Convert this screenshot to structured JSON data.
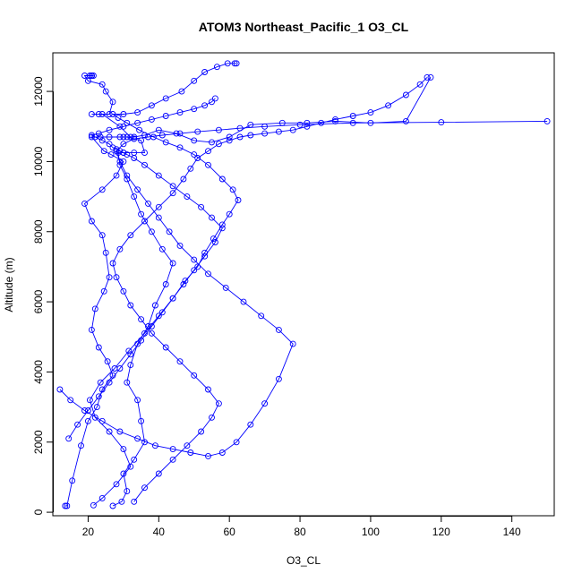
{
  "chart_data": {
    "type": "line",
    "title": "ATOM3 Northeast_Pacific_1 O3_CL",
    "xlabel": "O3_CL",
    "ylabel": "Altitude (m)",
    "xlim": [
      10,
      152
    ],
    "ylim": [
      -100,
      13100
    ],
    "xticks": [
      20,
      40,
      60,
      80,
      100,
      120,
      140
    ],
    "yticks": [
      0,
      2000,
      4000,
      6000,
      8000,
      10000,
      12000
    ],
    "grid": false,
    "legend": "none",
    "series_color": "#0000ff",
    "series": [
      {
        "x": [
          13.5,
          14.0,
          15.5,
          18.0,
          20.0,
          22.5,
          24.0,
          27.0,
          25.5,
          23.0,
          21.0,
          22.0,
          24.5,
          26.0,
          25.0,
          24.0,
          21.0,
          19.0,
          24.0,
          28.0,
          30.0,
          26.5,
          24.5,
          21.0,
          23.5,
          26.0,
          32.0,
          29.0,
          24.0,
          21.0,
          23.0,
          26.0,
          27.0,
          25.0,
          24.0,
          20.0,
          19.0,
          20.5,
          21.5,
          21.0,
          21.0,
          21.0,
          21.0
        ],
        "y": [
          180,
          180,
          900,
          1900,
          2600,
          3000,
          3500,
          3900,
          4300,
          4700,
          5200,
          5800,
          6300,
          6700,
          7400,
          7900,
          8300,
          8800,
          9200,
          9600,
          10000,
          10200,
          10300,
          10700,
          10700,
          10700,
          10700,
          11000,
          11350,
          11350,
          11350,
          11350,
          11700,
          12000,
          12200,
          12300,
          12450,
          12450,
          12450,
          12450,
          12450,
          12450,
          12450
        ]
      },
      {
        "x": [
          27.0,
          29.5,
          31.0,
          30.0,
          33.0,
          36.0,
          35.0,
          34.0,
          31.0,
          32.0,
          34.0,
          37.0,
          39.0,
          42.0,
          44.0,
          41.0,
          38.0,
          35.0,
          33.0,
          31.0,
          29.0,
          28.5,
          30.0,
          33.0,
          36.0,
          35.0,
          31.0,
          29.0,
          30.0,
          33.0,
          36.0,
          40.0,
          45.0,
          50.0,
          55.0,
          60.0,
          66.0,
          75.0,
          82.0,
          90.0,
          100.0,
          110.0,
          117.0
        ],
        "y": [
          180,
          300,
          600,
          1100,
          1500,
          2000,
          2600,
          3200,
          3700,
          4200,
          4800,
          5300,
          5900,
          6500,
          7100,
          7500,
          8000,
          8500,
          9000,
          9500,
          9900,
          10250,
          10250,
          10250,
          10250,
          10600,
          10700,
          10700,
          10700,
          10700,
          10750,
          10900,
          10800,
          10600,
          10550,
          10700,
          11050,
          11100,
          11100,
          11150,
          11100,
          11150,
          12400
        ]
      },
      {
        "x": [
          21.5,
          24.0,
          28.0,
          32.0,
          30.0,
          26.0,
          22.0,
          20.5,
          23.5,
          27.5,
          31.5,
          36.0,
          40.0,
          44.0,
          47.5,
          51.0,
          53.0,
          55.5,
          58.0,
          60.0,
          62.5,
          61.0,
          58.0,
          54.0,
          50.0,
          46.0,
          42.0,
          38.5,
          34.5,
          31.0,
          28.5,
          27.0,
          30.0,
          34.0,
          38.0,
          42.0,
          46.5,
          50.0,
          53.0,
          56.5,
          59.5,
          62.0,
          61.5
        ],
        "y": [
          200,
          400,
          800,
          1300,
          1800,
          2300,
          2700,
          3200,
          3700,
          4100,
          4600,
          5100,
          5600,
          6100,
          6600,
          7000,
          7400,
          7800,
          8200,
          8500,
          8900,
          9200,
          9500,
          9900,
          10200,
          10400,
          10550,
          10700,
          10900,
          11100,
          11250,
          11350,
          11350,
          11400,
          11600,
          11800,
          12000,
          12300,
          12550,
          12700,
          12800,
          12800,
          12800
        ]
      },
      {
        "x": [
          33.0,
          36.0,
          40.0,
          44.0,
          48.0,
          52.0,
          55.0,
          57.0,
          54.0,
          50.0,
          46.0,
          42.0,
          38.0,
          35.0,
          32.0,
          30.0,
          28.0,
          27.0,
          29.0,
          32.0,
          36.0,
          40.0,
          44.0,
          47.0,
          49.0,
          51.0,
          54.0,
          57.0,
          60.0,
          63.0,
          66.0,
          70.0,
          74.0,
          78.0,
          82.0,
          86.0,
          90.0,
          95.0,
          100.0,
          105.0,
          110.0,
          114.0,
          116.0
        ],
        "y": [
          300,
          700,
          1100,
          1500,
          1900,
          2300,
          2700,
          3100,
          3500,
          3900,
          4300,
          4700,
          5100,
          5500,
          5900,
          6300,
          6700,
          7100,
          7500,
          7900,
          8300,
          8700,
          9100,
          9500,
          9800,
          10100,
          10300,
          10500,
          10600,
          10700,
          10750,
          10800,
          10850,
          10900,
          11000,
          11100,
          11200,
          11300,
          11400,
          11600,
          11900,
          12200,
          12400
        ]
      },
      {
        "x": [
          12.0,
          15.0,
          19.0,
          24.0,
          29.0,
          34.0,
          39.0,
          44.0,
          49.0,
          54.0,
          58.0,
          62.0,
          66.0,
          70.0,
          74.0,
          78.0,
          74.0,
          69.0,
          64.0,
          59.0,
          54.0,
          50.0,
          46.0,
          43.0,
          40.0,
          37.0,
          34.0,
          31.0,
          29.0,
          28.0,
          30.0,
          33.0,
          37.0,
          41.0,
          46.0,
          51.0,
          57.0,
          63.0,
          70.0,
          80.0,
          95.0,
          120.0,
          150.0
        ],
        "y": [
          3500,
          3200,
          2900,
          2600,
          2300,
          2100,
          1900,
          1800,
          1700,
          1600,
          1700,
          2000,
          2500,
          3100,
          3800,
          4800,
          5200,
          5600,
          6000,
          6400,
          6800,
          7200,
          7600,
          8000,
          8400,
          8800,
          9200,
          9600,
          10000,
          10300,
          10500,
          10650,
          10700,
          10750,
          10800,
          10850,
          10900,
          10950,
          11000,
          11050,
          11100,
          11120,
          11150
        ]
      },
      {
        "x": [
          14.5,
          17.0,
          20.0,
          23.0,
          26.0,
          29.0,
          32.0,
          35.0,
          38.0,
          41.0,
          44.0,
          47.0,
          50.0,
          53.0,
          56.0,
          58.0,
          55.0,
          52.0,
          48.0,
          44.0,
          40.0,
          36.0,
          33.0,
          31.0,
          30.0,
          29.0,
          28.0,
          27.0,
          26.0,
          24.0,
          22.0,
          21.0,
          23.0,
          26.0,
          30.0,
          34.0,
          38.0,
          42.0,
          46.0,
          50.0,
          53.0,
          55.0,
          56.0
        ],
        "y": [
          2100,
          2500,
          2900,
          3300,
          3700,
          4100,
          4500,
          4900,
          5300,
          5700,
          6100,
          6500,
          6900,
          7300,
          7700,
          8100,
          8400,
          8700,
          9000,
          9300,
          9600,
          9900,
          10100,
          10200,
          10250,
          10300,
          10350,
          10400,
          10500,
          10600,
          10700,
          10750,
          10800,
          10900,
          11000,
          11100,
          11200,
          11300,
          11400,
          11500,
          11600,
          11700,
          11800
        ]
      }
    ]
  }
}
